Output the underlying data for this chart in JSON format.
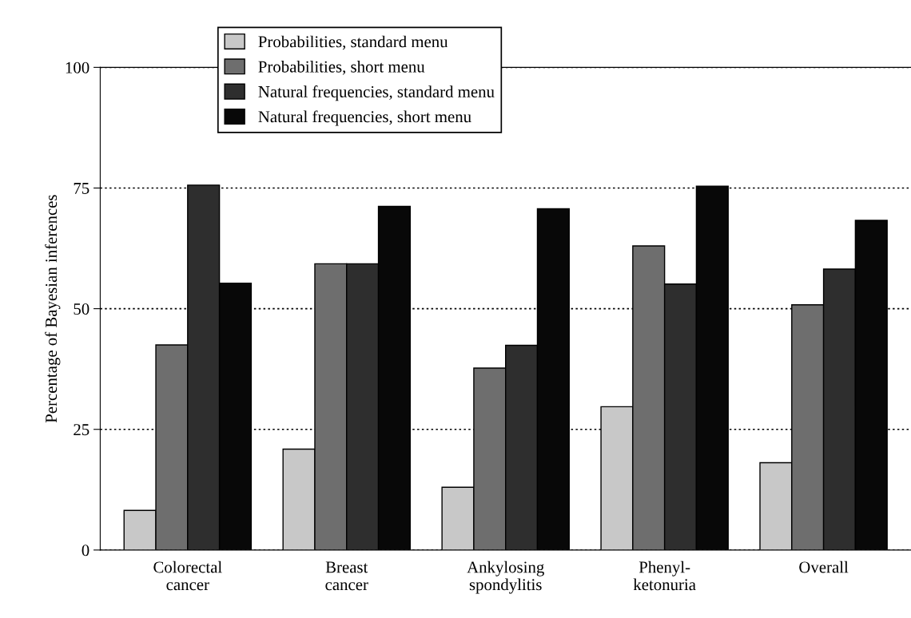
{
  "chart_data": {
    "type": "bar",
    "ylabel": "Percentage of Bayesian inferences",
    "categories": [
      "Colorectal\ncancer",
      "Breast\ncancer",
      "Ankylosing\nspondylitis",
      "Phenyl-\nketonuria",
      "Overall"
    ],
    "series": [
      {
        "name": "Probabilities, standard menu",
        "color": "#c8c8c8",
        "values": [
          8.2,
          20.9,
          13,
          29.7,
          18.1
        ]
      },
      {
        "name": "Probabilities, short menu",
        "color": "#6e6e6e",
        "values": [
          42.5,
          59.3,
          37.7,
          63,
          50.8
        ]
      },
      {
        "name": "Natural frequencies, standard menu",
        "color": "#2e2e2e",
        "values": [
          75.6,
          59.3,
          42.4,
          55.1,
          58.2
        ]
      },
      {
        "name": "Natural frequencies, short menu",
        "color": "#080808",
        "values": [
          55.3,
          71.2,
          70.7,
          75.4,
          68.3
        ]
      }
    ],
    "ylim": [
      0,
      100
    ],
    "yticks": [
      0,
      25,
      50,
      75,
      100
    ],
    "grid": "y",
    "legend": "top"
  }
}
